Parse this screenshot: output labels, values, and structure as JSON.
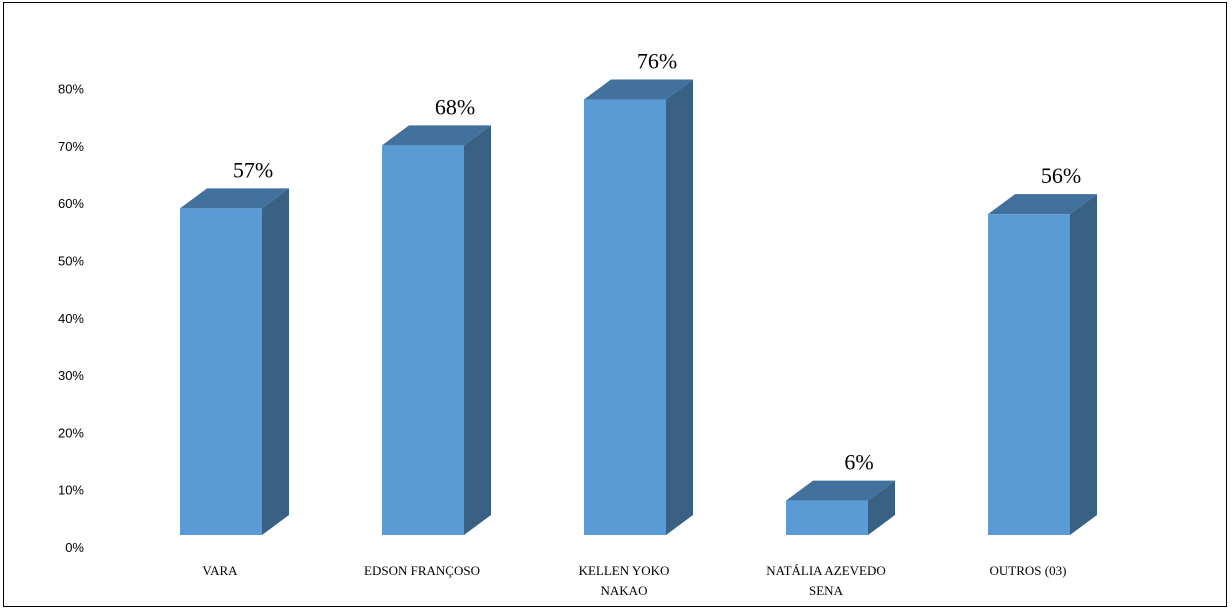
{
  "chart_data": {
    "type": "bar",
    "style": "3d-column",
    "categories": [
      "VARA",
      "EDSON FRANÇOSO",
      "KELLEN YOKO NAKAO",
      "NATÁLIA AZEVEDO SENA",
      "OUTROS (03)"
    ],
    "category_lines": [
      [
        "VARA"
      ],
      [
        "EDSON FRANÇOSO"
      ],
      [
        "KELLEN YOKO",
        "NAKAO"
      ],
      [
        "NATÁLIA AZEVEDO",
        "SENA"
      ],
      [
        "OUTROS (03)"
      ]
    ],
    "values": [
      57,
      68,
      76,
      6,
      56
    ],
    "data_labels": [
      "57%",
      "68%",
      "76%",
      "6%",
      "56%"
    ],
    "ylim": [
      0,
      80
    ],
    "yticks": [
      0,
      10,
      20,
      30,
      40,
      50,
      60,
      70,
      80
    ],
    "ytick_labels": [
      "0%",
      "10%",
      "20%",
      "30%",
      "40%",
      "50%",
      "60%",
      "70%",
      "80%"
    ],
    "title": "",
    "xlabel": "",
    "ylabel": "",
    "grid": false,
    "legend": "none",
    "colors": {
      "front": "#5b9bd5",
      "top": "#41719c",
      "side": "#386184"
    }
  }
}
